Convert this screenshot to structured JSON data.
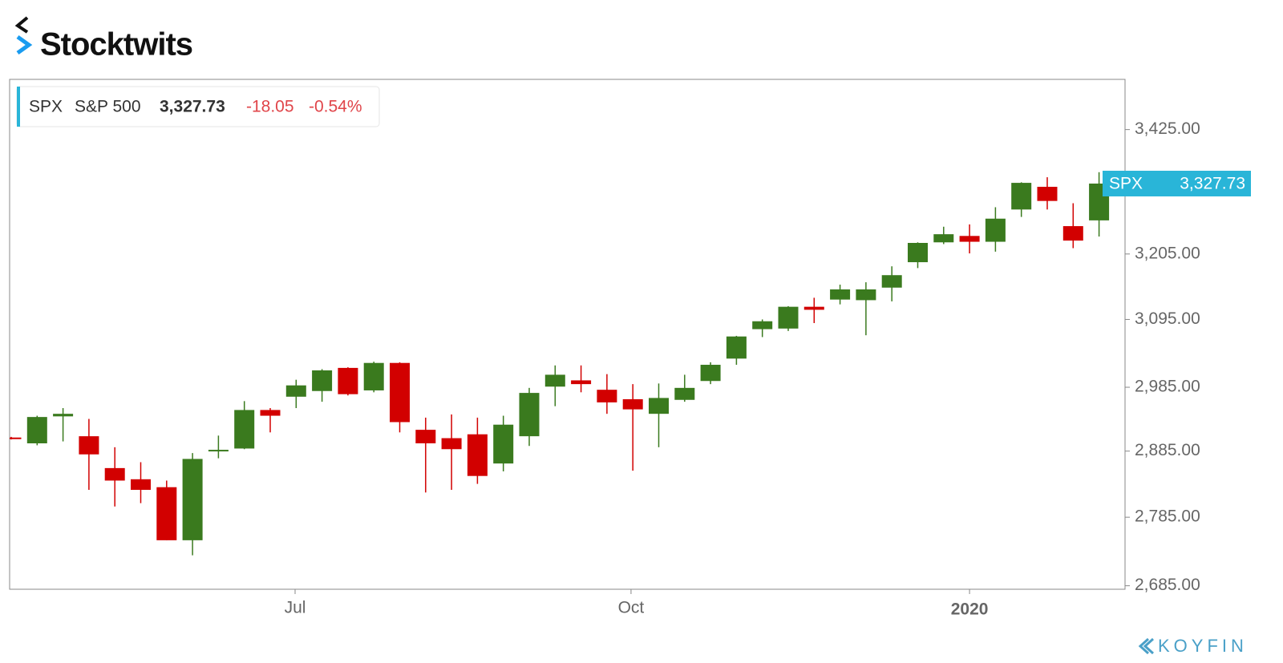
{
  "brand": "Stocktwits",
  "footer_brand": "KOYFIN",
  "chart_data": {
    "type": "candlestick",
    "ticker": "SPX",
    "name": "S&P 500",
    "last": "3,327.73",
    "change": "-18.05",
    "change_pct": "-0.54%",
    "open": [
      2906,
      2897,
      2939,
      2908,
      2859,
      2842,
      2830,
      2751,
      2885,
      2889,
      2949,
      2970,
      2979,
      3016,
      2980,
      3024,
      2918,
      2905,
      2911,
      2866,
      2908,
      2986,
      2996,
      2981,
      2966,
      2943,
      2965,
      2995,
      3031,
      3079,
      3080,
      3116,
      3128,
      3127,
      3148,
      3191,
      3225,
      3236,
      3226,
      3282,
      3322,
      3253,
      3263
    ],
    "high": [
      2907,
      2940,
      2952,
      2935,
      2891,
      2868,
      2840,
      2882,
      2909,
      2963,
      2952,
      2997,
      3014,
      3017,
      3026,
      3025,
      2937,
      2942,
      2937,
      2940,
      2984,
      3020,
      3020,
      3006,
      2990,
      2991,
      3005,
      3025,
      3068,
      3095,
      3117,
      3131,
      3153,
      3157,
      3184,
      3225,
      3252,
      3256,
      3286,
      3330,
      3339,
      3293,
      3348
    ],
    "low": [
      2903,
      2894,
      2900,
      2826,
      2801,
      2806,
      2751,
      2729,
      2874,
      2888,
      2914,
      2952,
      2962,
      2972,
      2977,
      2914,
      2822,
      2826,
      2835,
      2854,
      2893,
      2955,
      2977,
      2943,
      2855,
      2891,
      2962,
      2990,
      3021,
      3066,
      3076,
      3089,
      3120,
      3069,
      3125,
      3181,
      3222,
      3206,
      3209,
      3269,
      3282,
      3215,
      3235
    ],
    "close": [
      2904,
      2938,
      2943,
      2880,
      2840,
      2826,
      2751,
      2873,
      2887,
      2949,
      2940,
      2988,
      3012,
      2974,
      3024,
      2930,
      2897,
      2888,
      2847,
      2926,
      2976,
      3005,
      2990,
      2961,
      2950,
      2968,
      2984,
      3021,
      3067,
      3092,
      3116,
      3111,
      3145,
      3145,
      3169,
      3224,
      3239,
      3226,
      3266,
      3329,
      3297,
      3228,
      3327.73
    ],
    "up_color": "#3a7a1e",
    "down_color": "#d20000",
    "log_scale": true,
    "ylim": [
      2680,
      3518
    ],
    "yticks": [
      {
        "value": 2685,
        "label": "2,685.00"
      },
      {
        "value": 2785,
        "label": "2,785.00"
      },
      {
        "value": 2885,
        "label": "2,885.00"
      },
      {
        "value": 2985,
        "label": "2,985.00"
      },
      {
        "value": 3095,
        "label": "3,095.00"
      },
      {
        "value": 3205,
        "label": "3,205.00"
      },
      {
        "value": 3425,
        "label": "3,425.00"
      }
    ],
    "xticks": [
      {
        "value": 10.96,
        "label": "Jul"
      },
      {
        "value": 23.93,
        "label": "Oct"
      },
      {
        "value": 37,
        "label": "2020"
      }
    ],
    "emphasized_xtick": 2,
    "price_tag": {
      "label": "SPX",
      "value": "3,327.73",
      "color": "#29b5d8"
    }
  }
}
